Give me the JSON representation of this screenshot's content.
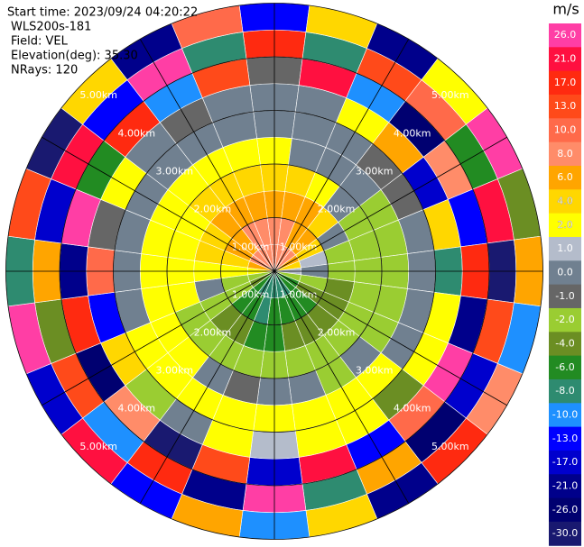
{
  "chart_data": {
    "type": "ppi",
    "header": [
      "Start time: 2023/09/24 04:20:22",
      "WLS200s-181",
      "Field: VEL",
      "Elevation(deg): 35.30",
      "NRays: 120"
    ],
    "colorbar_title": "m/s",
    "levels": [
      {
        "value": 26,
        "label": "26.0"
      },
      {
        "value": 21,
        "label": "21.0"
      },
      {
        "value": 17,
        "label": "17.0"
      },
      {
        "value": 13,
        "label": "13.0"
      },
      {
        "value": 10,
        "label": "10.0"
      },
      {
        "value": 8,
        "label": "8.0"
      },
      {
        "value": 6,
        "label": "6.0"
      },
      {
        "value": 4,
        "label": "4.0"
      },
      {
        "value": 2,
        "label": "2.0"
      },
      {
        "value": 1,
        "label": "1.0"
      },
      {
        "value": 0,
        "label": "0.0"
      },
      {
        "value": -1,
        "label": "-1.0"
      },
      {
        "value": -2,
        "label": "-2.0"
      },
      {
        "value": -4,
        "label": "-4.0"
      },
      {
        "value": -6,
        "label": "-6.0"
      },
      {
        "value": -8,
        "label": "-8.0"
      },
      {
        "value": -10,
        "label": "-10.0"
      },
      {
        "value": -13,
        "label": "-13.0"
      },
      {
        "value": -17,
        "label": "-17.0"
      },
      {
        "value": -21,
        "label": "-21.0"
      },
      {
        "value": -26,
        "label": "-26.0"
      },
      {
        "value": -30,
        "label": "-30.0"
      }
    ],
    "colors": [
      "#ff3ea5",
      "#ff1040",
      "#ff2a10",
      "#ff4a1a",
      "#ff6a4a",
      "#ff8c69",
      "#ffa500",
      "#ffd700",
      "#ffff00",
      "#b4bccb",
      "#708090",
      "#666666",
      "#9acd32",
      "#6b8e23",
      "#228b22",
      "#2e8b70",
      "#1e90ff",
      "#0000ff",
      "#0000cd",
      "#00008b",
      "#000070",
      "#191970"
    ],
    "range_rings": [
      {
        "value": 1,
        "label": "1.00km"
      },
      {
        "value": 2,
        "label": "2.00km"
      },
      {
        "value": 3,
        "label": "3.00km"
      },
      {
        "value": 4,
        "label": "4.00km"
      },
      {
        "value": 5,
        "label": "5.00km"
      }
    ],
    "azimuth_grid": [
      0,
      30,
      60,
      90,
      120,
      150,
      180,
      210,
      240,
      270,
      300,
      330
    ],
    "range_bins": [
      0,
      0.5,
      1,
      1.5,
      2,
      2.5,
      3,
      3.5,
      4,
      4.5,
      5
    ],
    "azimuths": [
      0,
      15,
      30,
      45,
      60,
      75,
      90,
      105,
      120,
      135,
      150,
      165,
      180,
      195,
      210,
      225,
      240,
      255,
      270,
      285,
      300,
      315,
      330,
      345
    ],
    "values": [
      [
        8,
        8,
        6,
        4,
        2,
        0,
        0,
        -1,
        17,
        -13
      ],
      [
        8,
        8,
        6,
        4,
        0,
        0,
        0,
        21,
        -8,
        4
      ],
      [
        8,
        6,
        6,
        2,
        0,
        0,
        2,
        -10,
        13,
        -21
      ],
      [
        8,
        6,
        4,
        0,
        0,
        -1,
        6,
        -26,
        10,
        2
      ],
      [
        6,
        4,
        0,
        -2,
        -2,
        -1,
        -17,
        8,
        -6,
        26
      ],
      [
        4,
        1,
        -2,
        -2,
        -2,
        0,
        4,
        -13,
        21,
        -4
      ],
      [
        1,
        0,
        -2,
        -2,
        -2,
        0,
        -8,
        17,
        -30,
        6
      ],
      [
        -2,
        -2,
        -4,
        -2,
        -2,
        0,
        2,
        -21,
        13,
        -10
      ],
      [
        -6,
        -4,
        -4,
        -2,
        -2,
        0,
        2,
        26,
        -17,
        8
      ],
      [
        -6,
        -6,
        -4,
        -2,
        0,
        2,
        -4,
        10,
        -26,
        17
      ],
      [
        -8,
        -6,
        -4,
        -2,
        -2,
        2,
        2,
        -13,
        6,
        -21
      ],
      [
        -8,
        -6,
        -4,
        -2,
        0,
        2,
        2,
        21,
        -8,
        4
      ],
      [
        -8,
        -6,
        -6,
        -2,
        0,
        2,
        1,
        -17,
        26,
        -10
      ],
      [
        -8,
        -8,
        -6,
        -2,
        -1,
        2,
        2,
        13,
        -21,
        6
      ],
      [
        -8,
        -6,
        -4,
        -2,
        0,
        2,
        0,
        -30,
        17,
        -13
      ],
      [
        -6,
        -6,
        -4,
        -2,
        2,
        2,
        -2,
        8,
        -10,
        21
      ],
      [
        -4,
        -2,
        -2,
        -2,
        2,
        2,
        4,
        -26,
        13,
        -17
      ],
      [
        -2,
        -2,
        0,
        2,
        2,
        0,
        -13,
        17,
        -4,
        26
      ],
      [
        2,
        2,
        2,
        2,
        2,
        0,
        10,
        -21,
        6,
        -8
      ],
      [
        6,
        4,
        4,
        2,
        2,
        0,
        -1,
        26,
        -17,
        13
      ],
      [
        8,
        6,
        4,
        2,
        2,
        0,
        2,
        -6,
        21,
        -30
      ],
      [
        8,
        6,
        6,
        4,
        2,
        0,
        0,
        17,
        -13,
        4
      ],
      [
        8,
        8,
        6,
        4,
        2,
        0,
        -1,
        -10,
        26,
        -21
      ],
      [
        8,
        8,
        6,
        4,
        2,
        0,
        0,
        13,
        -8,
        10
      ]
    ]
  }
}
